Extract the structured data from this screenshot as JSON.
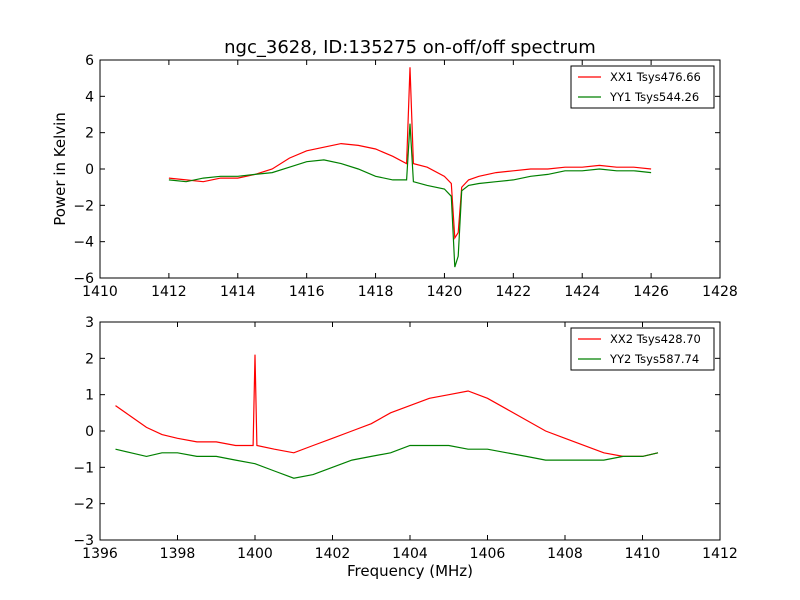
{
  "chart_data": [
    {
      "type": "line",
      "title": "ngc_3628, ID:135275 on-off/off spectrum",
      "xlabel": "",
      "ylabel": "Power in Kelvin",
      "xlim": [
        1410,
        1428
      ],
      "ylim": [
        -6,
        6
      ],
      "xticks": [
        1410,
        1412,
        1414,
        1416,
        1418,
        1420,
        1422,
        1424,
        1426,
        1428
      ],
      "yticks": [
        -6,
        -4,
        -2,
        0,
        2,
        4,
        6
      ],
      "grid": false,
      "legend_position": "top-right",
      "series": [
        {
          "name": "XX1 Tsys476.66",
          "color": "#ff0000",
          "x": [
            1412.0,
            1412.5,
            1413.0,
            1413.5,
            1414.0,
            1414.5,
            1415.0,
            1415.5,
            1416.0,
            1416.5,
            1417.0,
            1417.5,
            1418.0,
            1418.5,
            1418.9,
            1419.0,
            1419.1,
            1419.5,
            1420.0,
            1420.2,
            1420.3,
            1420.4,
            1420.5,
            1420.7,
            1421.0,
            1421.5,
            1422.0,
            1422.5,
            1423.0,
            1423.5,
            1424.0,
            1424.5,
            1425.0,
            1425.5,
            1426.0
          ],
          "y": [
            -0.5,
            -0.6,
            -0.7,
            -0.5,
            -0.5,
            -0.3,
            0.0,
            0.6,
            1.0,
            1.2,
            1.4,
            1.3,
            1.1,
            0.7,
            0.3,
            5.6,
            0.3,
            0.1,
            -0.4,
            -0.8,
            -3.8,
            -3.5,
            -1.0,
            -0.6,
            -0.4,
            -0.2,
            -0.1,
            0.0,
            0.0,
            0.1,
            0.1,
            0.2,
            0.1,
            0.1,
            0.0
          ]
        },
        {
          "name": "YY1 Tsys544.26",
          "color": "#008000",
          "x": [
            1412.0,
            1412.5,
            1413.0,
            1413.5,
            1414.0,
            1414.5,
            1415.0,
            1415.5,
            1416.0,
            1416.5,
            1417.0,
            1417.5,
            1418.0,
            1418.5,
            1418.9,
            1419.0,
            1419.1,
            1419.5,
            1420.0,
            1420.2,
            1420.3,
            1420.4,
            1420.5,
            1420.7,
            1421.0,
            1421.5,
            1422.0,
            1422.5,
            1423.0,
            1423.5,
            1424.0,
            1424.5,
            1425.0,
            1425.5,
            1426.0
          ],
          "y": [
            -0.6,
            -0.7,
            -0.5,
            -0.4,
            -0.4,
            -0.3,
            -0.2,
            0.1,
            0.4,
            0.5,
            0.3,
            0.0,
            -0.4,
            -0.6,
            -0.6,
            2.5,
            -0.7,
            -0.9,
            -1.1,
            -1.5,
            -5.4,
            -4.8,
            -1.2,
            -0.9,
            -0.8,
            -0.7,
            -0.6,
            -0.4,
            -0.3,
            -0.1,
            -0.1,
            0.0,
            -0.1,
            -0.1,
            -0.2
          ]
        }
      ]
    },
    {
      "type": "line",
      "title": "",
      "xlabel": "Frequency (MHz)",
      "ylabel": "",
      "xlim": [
        1396,
        1412
      ],
      "ylim": [
        -3,
        3
      ],
      "xticks": [
        1396,
        1398,
        1400,
        1402,
        1404,
        1406,
        1408,
        1410,
        1412
      ],
      "yticks": [
        -3,
        -2,
        -1,
        0,
        1,
        2,
        3
      ],
      "grid": false,
      "legend_position": "top-right",
      "series": [
        {
          "name": "XX2 Tsys428.70",
          "color": "#ff0000",
          "x": [
            1396.4,
            1396.8,
            1397.2,
            1397.6,
            1398.0,
            1398.5,
            1399.0,
            1399.5,
            1399.95,
            1400.0,
            1400.05,
            1400.5,
            1401.0,
            1401.5,
            1402.0,
            1402.5,
            1403.0,
            1403.5,
            1404.0,
            1404.5,
            1405.0,
            1405.5,
            1406.0,
            1406.5,
            1407.0,
            1407.5,
            1408.0,
            1408.5,
            1409.0,
            1409.5,
            1410.0,
            1410.4
          ],
          "y": [
            0.7,
            0.4,
            0.1,
            -0.1,
            -0.2,
            -0.3,
            -0.3,
            -0.4,
            -0.4,
            2.1,
            -0.4,
            -0.5,
            -0.6,
            -0.4,
            -0.2,
            0.0,
            0.2,
            0.5,
            0.7,
            0.9,
            1.0,
            1.1,
            0.9,
            0.6,
            0.3,
            0.0,
            -0.2,
            -0.4,
            -0.6,
            -0.7,
            -0.7,
            -0.6
          ]
        },
        {
          "name": "YY2 Tsys587.74",
          "color": "#008000",
          "x": [
            1396.4,
            1396.8,
            1397.2,
            1397.6,
            1398.0,
            1398.5,
            1399.0,
            1399.5,
            1400.0,
            1400.5,
            1401.0,
            1401.5,
            1402.0,
            1402.5,
            1403.0,
            1403.5,
            1404.0,
            1404.5,
            1405.0,
            1405.5,
            1406.0,
            1406.5,
            1407.0,
            1407.5,
            1408.0,
            1408.5,
            1409.0,
            1409.5,
            1410.0,
            1410.4
          ],
          "y": [
            -0.5,
            -0.6,
            -0.7,
            -0.6,
            -0.6,
            -0.7,
            -0.7,
            -0.8,
            -0.9,
            -1.1,
            -1.3,
            -1.2,
            -1.0,
            -0.8,
            -0.7,
            -0.6,
            -0.4,
            -0.4,
            -0.4,
            -0.5,
            -0.5,
            -0.6,
            -0.7,
            -0.8,
            -0.8,
            -0.8,
            -0.8,
            -0.7,
            -0.7,
            -0.6
          ]
        }
      ]
    }
  ]
}
